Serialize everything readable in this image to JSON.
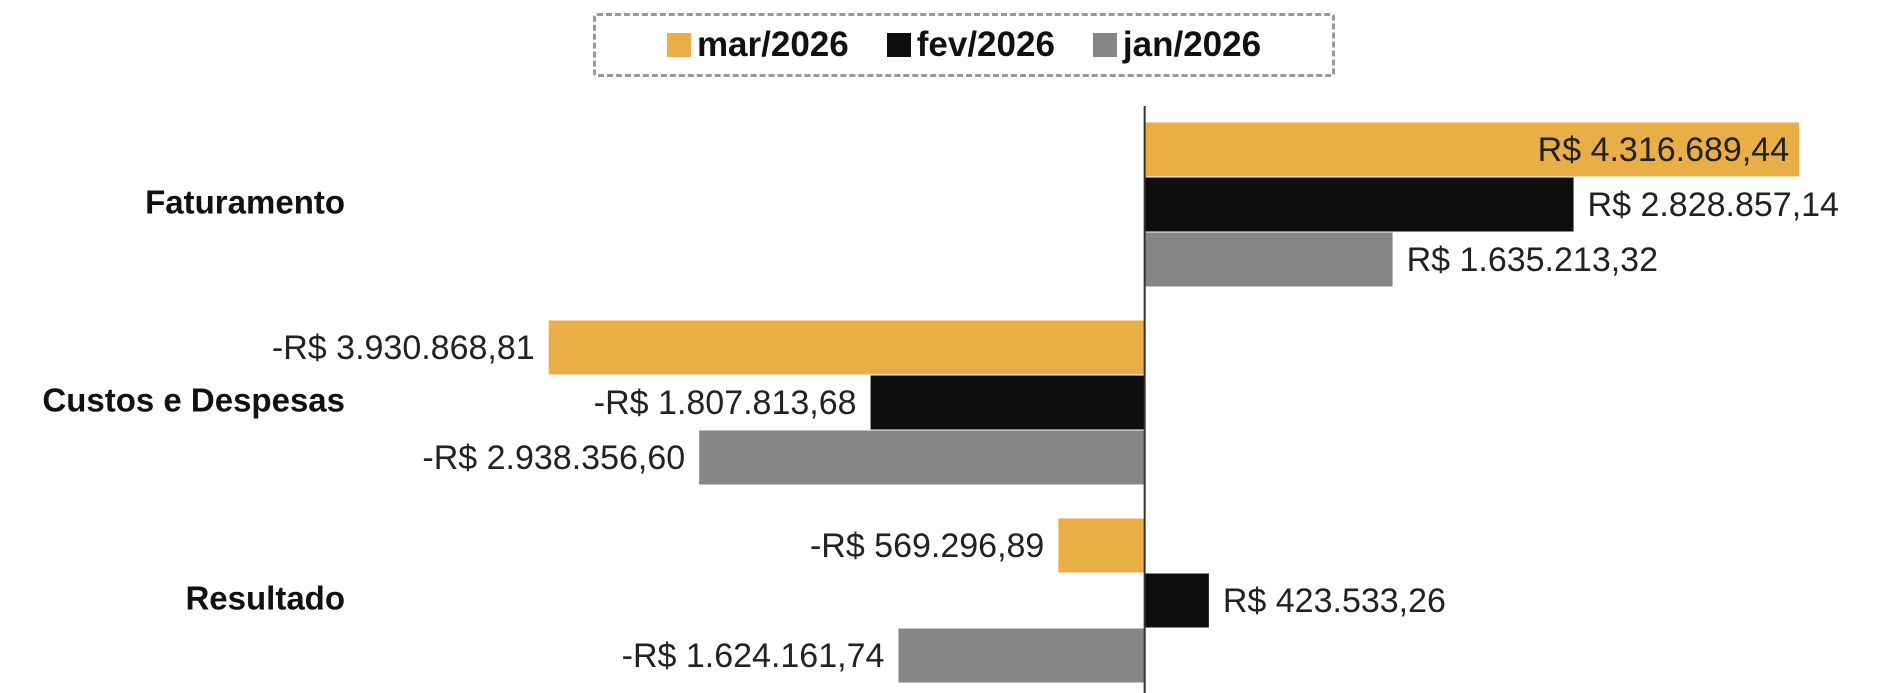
{
  "chart_data": {
    "type": "bar",
    "orientation": "horizontal",
    "categories": [
      "Faturamento",
      "Custos e Despesas",
      "Resultado"
    ],
    "series": [
      {
        "name": "mar/2026",
        "color": "#e9ae46",
        "values": [
          4316689.44,
          -3930868.81,
          -569296.89
        ],
        "value_labels": [
          "R$ 4.316.689,44",
          "-R$ 3.930.868,81",
          "-R$ 569.296,89"
        ]
      },
      {
        "name": "fev/2026",
        "color": "#0e0e0e",
        "values": [
          2828857.14,
          -1807813.68,
          423533.26
        ],
        "value_labels": [
          "R$ 2.828.857,14",
          "-R$ 1.807.813,68",
          "R$ 423.533,26"
        ]
      },
      {
        "name": "jan/2026",
        "color": "#868686",
        "values": [
          1635213.32,
          -2938356.6,
          -1624161.74
        ],
        "value_labels": [
          "R$ 1.635.213,32",
          "-R$ 2.938.356,60",
          "-R$ 1.624.161,74"
        ]
      }
    ],
    "xlim": [
      -7550000,
      4870000
    ],
    "legend": "top"
  }
}
